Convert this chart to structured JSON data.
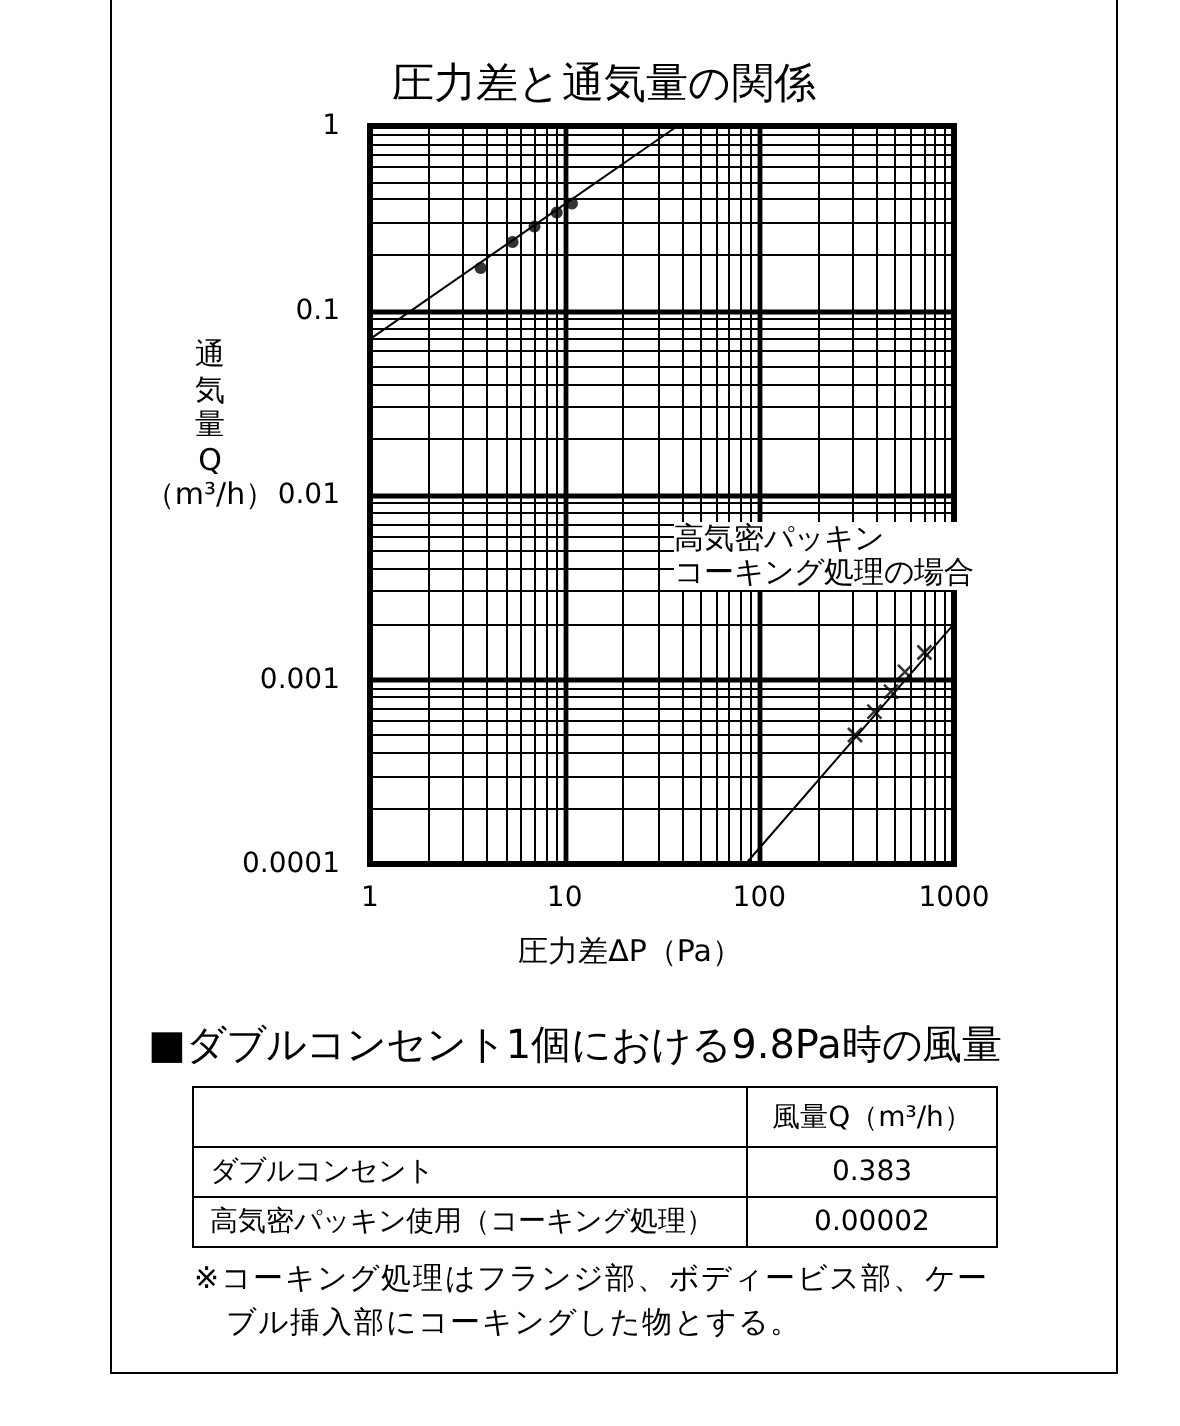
{
  "chart_data": [
    {
      "type": "line",
      "title": "圧力差と通気量の関係",
      "xlabel": "圧力差ΔP（Pa）",
      "ylabel": "通気量Q（m³/h）",
      "log": "xy",
      "grid": true,
      "xlim": [
        1,
        1000
      ],
      "ylim": [
        0.0001,
        1
      ],
      "xticks": [
        1,
        {
          "value": 2,
          "label": null
        },
        {
          "value": 3,
          "label": null
        },
        {
          "value": 4,
          "label": null
        },
        {
          "value": 5,
          "label": null
        },
        {
          "value": 6,
          "label": null
        },
        {
          "value": 7,
          "label": null
        },
        {
          "value": 8,
          "label": null
        },
        {
          "value": 9,
          "label": null
        },
        10,
        {
          "value": 20,
          "label": null
        },
        {
          "value": 30,
          "label": null
        },
        {
          "value": 40,
          "label": null
        },
        {
          "value": 50,
          "label": null
        },
        {
          "value": 60,
          "label": null
        },
        {
          "value": 70,
          "label": null
        },
        {
          "value": 80,
          "label": null
        },
        {
          "value": 90,
          "label": null
        },
        100,
        {
          "value": 200,
          "label": null
        },
        {
          "value": 300,
          "label": null
        },
        {
          "value": 400,
          "label": null
        },
        {
          "value": 500,
          "label": null
        },
        {
          "value": 600,
          "label": null
        },
        {
          "value": 700,
          "label": null
        },
        {
          "value": 800,
          "label": null
        },
        {
          "value": 900,
          "label": null
        },
        1000
      ],
      "yticks": [
        0.0001,
        {
          "value": 0.0002,
          "label": null
        },
        {
          "value": 0.0003,
          "label": null
        },
        {
          "value": 0.0004,
          "label": null
        },
        {
          "value": 0.0005,
          "label": null
        },
        {
          "value": 0.0006,
          "label": null
        },
        {
          "value": 0.0007,
          "label": null
        },
        {
          "value": 0.0008,
          "label": null
        },
        {
          "value": 0.0009,
          "label": null
        },
        0.001,
        {
          "value": 0.002,
          "label": null
        },
        {
          "value": 0.003,
          "label": null
        },
        {
          "value": 0.004,
          "label": null
        },
        {
          "value": 0.005,
          "label": null
        },
        {
          "value": 0.006,
          "label": null
        },
        {
          "value": 0.007,
          "label": null
        },
        {
          "value": 0.008,
          "label": null
        },
        {
          "value": 0.009,
          "label": null
        },
        0.01,
        {
          "value": 0.02,
          "label": null
        },
        {
          "value": 0.03,
          "label": null
        },
        {
          "value": 0.04,
          "label": null
        },
        {
          "value": 0.05,
          "label": null
        },
        {
          "value": 0.06,
          "label": null
        },
        {
          "value": 0.07,
          "label": null
        },
        {
          "value": 0.08,
          "label": null
        },
        {
          "value": 0.09,
          "label": null
        },
        0.1,
        {
          "value": 0.2,
          "label": null
        },
        {
          "value": 0.3,
          "label": null
        },
        {
          "value": 0.4,
          "label": null
        },
        {
          "value": 0.5,
          "label": null
        },
        {
          "value": 0.6,
          "label": null
        },
        {
          "value": 0.7,
          "label": null
        },
        {
          "value": 0.8,
          "label": null
        },
        {
          "value": 0.9,
          "label": null
        },
        1
      ],
      "series": [
        {
          "type": "line",
          "x": [
            1,
            38
          ],
          "values": [
            0.07,
            1
          ],
          "color": "#000000",
          "marker": "none"
        },
        {
          "type": "scatter",
          "x": [
            3.7,
            5.4,
            7,
            9.1,
            10.9
          ],
          "values": [
            0.17,
            0.235,
            0.285,
            0.34,
            0.38
          ],
          "color": "#000000",
          "marker": "circle"
        },
        {
          "type": "line",
          "name": "高気密パッキンコーキング処理の場合",
          "x": [
            85,
            1000
          ],
          "values": [
            0.0001,
            0.002
          ],
          "color": "#000000",
          "marker": "none"
        },
        {
          "type": "scatter",
          "x": [
            310,
            390,
            475,
            560,
            705
          ],
          "values": [
            0.0005,
            0.00067,
            0.00086,
            0.0011,
            0.0014
          ],
          "color": "#000000",
          "marker": "cross"
        }
      ]
    },
    {
      "type": "other",
      "title": "■ダブルコンセント1個における9.8Pa時の風量",
      "ylabel": "風量Q（m³/h）",
      "categories": [
        "ダブルコンセント",
        "高気密パッキン使用（コーキング処理）"
      ],
      "value_labels": [
        "0.383",
        "0.00002"
      ],
      "annotations": [
        "※コーキング処理はフランジ部、ボディービス部、ケーブル挿入部にコーキングした物とする。"
      ]
    }
  ]
}
